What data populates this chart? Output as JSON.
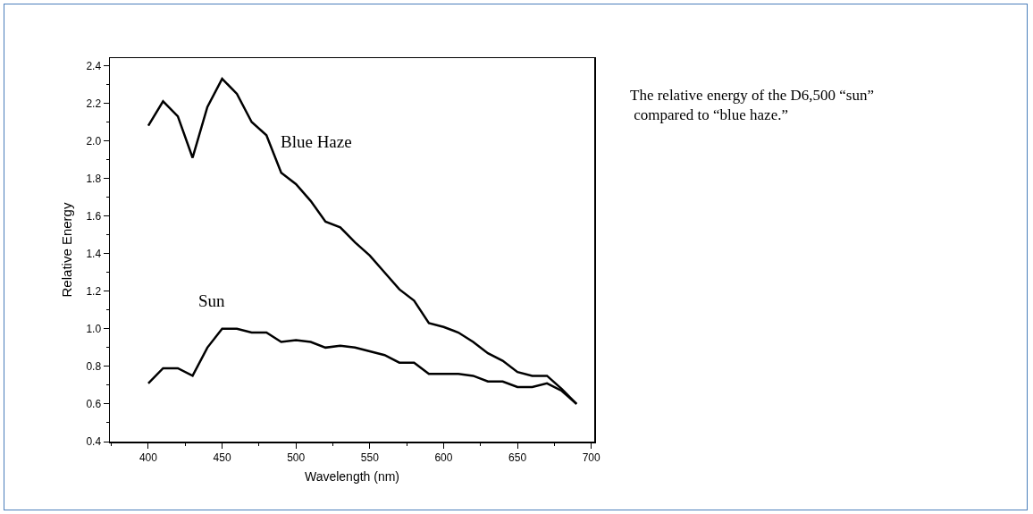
{
  "chart_data": {
    "type": "line",
    "xlabel": "Wavelength (nm)",
    "ylabel": "Relative Energy",
    "annotations": [
      "The relative energy of the D6,500 “sun” compared to “blue haze.”"
    ],
    "x": [
      400,
      410,
      420,
      430,
      440,
      450,
      460,
      470,
      480,
      490,
      500,
      510,
      520,
      530,
      540,
      550,
      560,
      570,
      580,
      590,
      600,
      610,
      620,
      630,
      640,
      650,
      660,
      670,
      680,
      690
    ],
    "series": [
      {
        "name": "Blue Haze",
        "color": "#000000",
        "values": [
          2.08,
          2.21,
          2.13,
          1.91,
          2.18,
          2.33,
          2.25,
          2.1,
          2.03,
          1.83,
          1.77,
          1.68,
          1.57,
          1.54,
          1.46,
          1.39,
          1.3,
          1.21,
          1.15,
          1.03,
          1.01,
          0.98,
          0.93,
          0.87,
          0.83,
          0.77,
          0.75,
          0.75,
          0.68,
          0.6
        ]
      },
      {
        "name": "Sun",
        "color": "#000000",
        "values": [
          0.71,
          0.79,
          0.79,
          0.75,
          0.9,
          1.0,
          1.0,
          0.98,
          0.98,
          0.93,
          0.94,
          0.93,
          0.9,
          0.91,
          0.9,
          0.88,
          0.86,
          0.82,
          0.82,
          0.76,
          0.76,
          0.76,
          0.75,
          0.72,
          0.72,
          0.69,
          0.69,
          0.71,
          0.67,
          0.6
        ]
      }
    ],
    "xlim": [
      374,
      702
    ],
    "xticks": [
      400,
      450,
      500,
      550,
      600,
      650,
      700
    ],
    "ylim": [
      0.4,
      2.44
    ],
    "yticks": [
      0.4,
      0.6,
      0.8,
      {
        "value": 1,
        "label": "1.0"
      },
      1.2,
      1.4,
      1.6,
      1.8,
      {
        "value": 2,
        "label": "2.0"
      },
      2.2,
      2.4
    ],
    "grid": false,
    "legend": false,
    "marker": "none",
    "line_style": "solid"
  }
}
